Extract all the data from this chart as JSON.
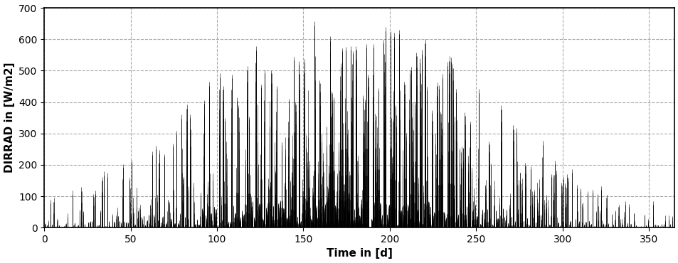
{
  "title": "",
  "xlabel": "Time in [d]",
  "ylabel": "DIRRAD in [W/m2]",
  "xlim": [
    0,
    365
  ],
  "ylim": [
    0,
    700
  ],
  "xticks": [
    0,
    50,
    100,
    150,
    200,
    250,
    300,
    350
  ],
  "yticks": [
    0,
    100,
    200,
    300,
    400,
    500,
    600,
    700
  ],
  "grid_color": "#aaaaaa",
  "line_color": "#000000",
  "background_color": "#ffffff",
  "seed": 42,
  "num_hours": 8760,
  "linewidth": 0.4
}
